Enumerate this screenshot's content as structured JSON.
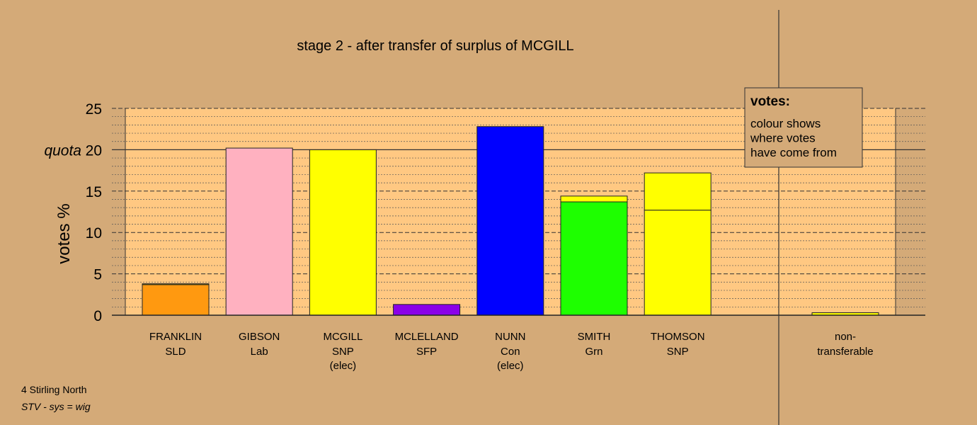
{
  "chart_data": {
    "type": "bar",
    "title": "stage 2 - after transfer of surplus of MCGILL",
    "ylabel": "votes %",
    "ylim": [
      0,
      25
    ],
    "yticks": [
      0,
      5,
      10,
      15,
      20,
      25
    ],
    "quota": 20,
    "quota_label": "quota",
    "candidates": [
      {
        "name": "FRANKLIN",
        "party": "SLD",
        "status": "",
        "segments": [
          {
            "value": 3.7,
            "color": "#ff9910"
          },
          {
            "value": 0.1,
            "color": "#ffff00"
          }
        ]
      },
      {
        "name": "GIBSON",
        "party": "Lab",
        "status": "",
        "segments": [
          {
            "value": 20.2,
            "color": "#ffb1c0"
          }
        ]
      },
      {
        "name": "MCGILL",
        "party": "SNP",
        "status": "(elec)",
        "segments": [
          {
            "value": 20.0,
            "color": "#ffff00"
          }
        ]
      },
      {
        "name": "MCLELLAND",
        "party": "SFP",
        "status": "",
        "segments": [
          {
            "value": 1.3,
            "color": "#8b00e8"
          }
        ]
      },
      {
        "name": "NUNN",
        "party": "Con",
        "status": "(elec)",
        "segments": [
          {
            "value": 22.8,
            "color": "#0000ff"
          }
        ]
      },
      {
        "name": "SMITH",
        "party": "Grn",
        "status": "",
        "segments": [
          {
            "value": 13.7,
            "color": "#1eff00"
          },
          {
            "value": 0.7,
            "color": "#ffff00"
          }
        ]
      },
      {
        "name": "THOMSON",
        "party": "SNP",
        "status": "",
        "segments": [
          {
            "value": 12.7,
            "color": "#ffff00"
          },
          {
            "value": 4.5,
            "color": "#ffff00"
          }
        ]
      }
    ],
    "nontransferable": {
      "label_line1": "non-",
      "label_line2": "transferable",
      "value": 0.3,
      "color": "#ffff00"
    },
    "legend": {
      "title": "votes:",
      "lines": [
        "colour shows",
        "where votes",
        "have come from"
      ],
      "placement": "top-right"
    },
    "grid": true,
    "plot_background": "#ffc882",
    "page_background": "#d4aa78"
  },
  "footer": {
    "constituency": "4 Stirling North",
    "system": "STV - sys = wig"
  }
}
